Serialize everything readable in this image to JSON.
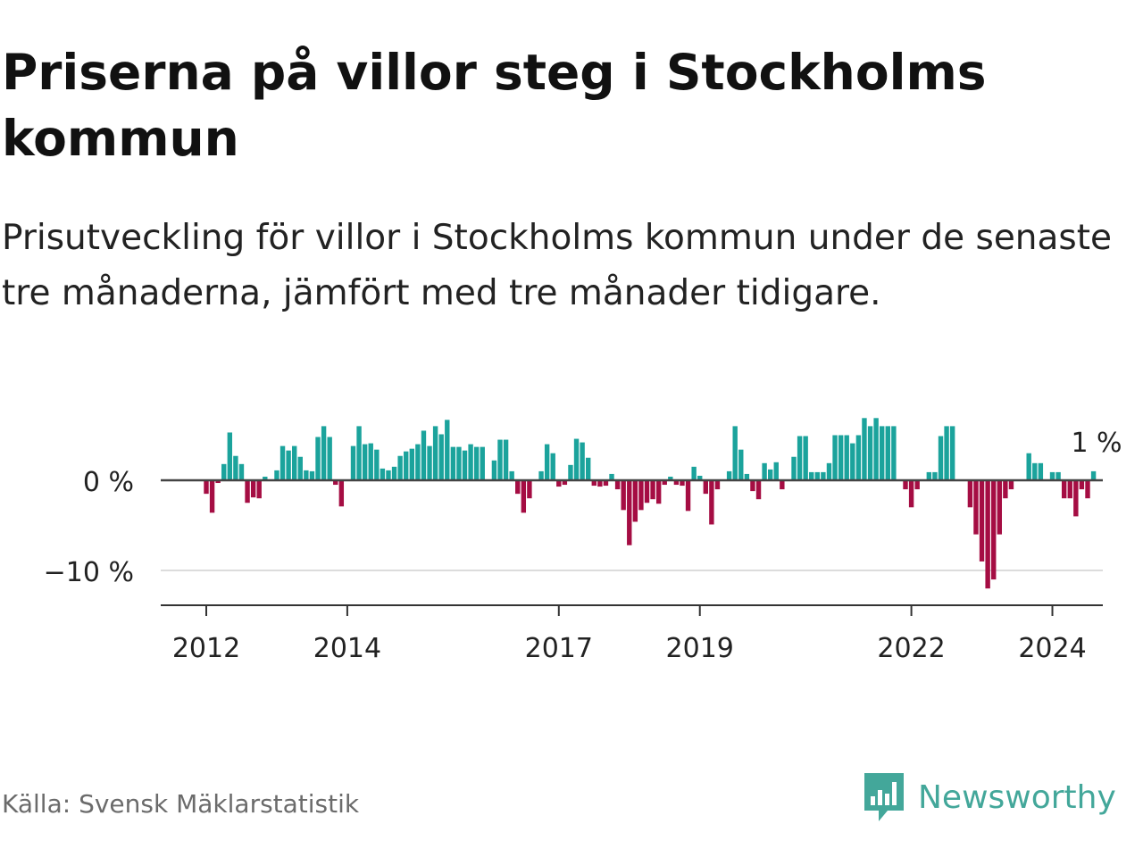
{
  "title": "Priserna på villor steg i Stockholms kommun",
  "subtitle": "Prisutveckling för villor i Stockholms kommun under de senaste tre månaderna, jämfört med tre månader tidigare.",
  "source": "Källa: Svensk Mäklarstatistik",
  "brand": {
    "name": "Newsworthy",
    "icon": "newsworthy-logo-icon",
    "color": "#43a79a"
  },
  "colors": {
    "positive": "#1ba39c",
    "negative": "#a50d43",
    "zero_line": "#444444",
    "grid": "#dcdcdc",
    "axis": "#333333"
  },
  "chart_data": {
    "type": "bar",
    "title": "Priserna på villor steg i Stockholms kommun",
    "ylabel": "",
    "xlabel": "",
    "ylim": [
      -14,
      8
    ],
    "unit": "%",
    "y_ticks": [
      {
        "value": 0,
        "label": "0 %"
      },
      {
        "value": -10,
        "label": "−10 %"
      }
    ],
    "x_ticks": [
      {
        "x": 2012,
        "label": "2012"
      },
      {
        "x": 2014,
        "label": "2014"
      },
      {
        "x": 2017,
        "label": "2017"
      },
      {
        "x": 2019,
        "label": "2019"
      },
      {
        "x": 2022,
        "label": "2022"
      },
      {
        "x": 2024,
        "label": "2024"
      }
    ],
    "end_label": "1 %",
    "start_year": 2012,
    "months_per_bar": 1,
    "values": [
      -1.5,
      -3.6,
      -0.3,
      1.8,
      5.3,
      2.7,
      1.8,
      -2.5,
      -1.9,
      -2.0,
      0.4,
      0.0,
      1.1,
      3.8,
      3.3,
      3.8,
      2.6,
      1.1,
      1.0,
      4.8,
      6.0,
      4.8,
      -0.5,
      -2.9,
      0.0,
      3.8,
      6.0,
      4.0,
      4.1,
      3.4,
      1.3,
      1.1,
      1.5,
      2.7,
      3.2,
      3.5,
      4.0,
      5.5,
      3.8,
      6.0,
      5.1,
      6.7,
      3.7,
      3.7,
      3.3,
      4.0,
      3.7,
      3.7,
      0.0,
      2.2,
      4.5,
      4.5,
      1.0,
      -1.5,
      -3.6,
      -2.0,
      0.0,
      1.0,
      4.0,
      3.0,
      -0.7,
      -0.5,
      1.7,
      4.6,
      4.2,
      2.5,
      -0.6,
      -0.7,
      -0.6,
      0.7,
      -1.0,
      -3.3,
      -7.2,
      -4.6,
      -3.3,
      -2.5,
      -2.1,
      -2.6,
      -0.5,
      0.4,
      -0.5,
      -0.6,
      -3.4,
      1.5,
      0.5,
      -1.5,
      -4.9,
      -1.0,
      0.0,
      1.0,
      6.0,
      3.4,
      0.7,
      -1.2,
      -2.1,
      1.9,
      1.2,
      2.0,
      -1.0,
      0.0,
      2.6,
      4.9,
      4.9,
      0.9,
      0.9,
      0.9,
      1.9,
      5.0,
      5.0,
      5.0,
      4.1,
      5.0,
      6.9,
      6.0,
      6.9,
      6.0,
      6.0,
      6.0,
      0.0,
      -1.0,
      -3.0,
      -1.0,
      0.0,
      0.9,
      0.9,
      4.9,
      6.0,
      6.0,
      0.0,
      0.0,
      -3.0,
      -6.0,
      -9.0,
      -12.0,
      -11.0,
      -6.0,
      -2.0,
      -1.0,
      0.0,
      0.0,
      3.0,
      1.9,
      1.9,
      0.0,
      0.9,
      0.9,
      -2.0,
      -2.0,
      -4.0,
      -1.0,
      -2.0,
      1.0
    ]
  }
}
